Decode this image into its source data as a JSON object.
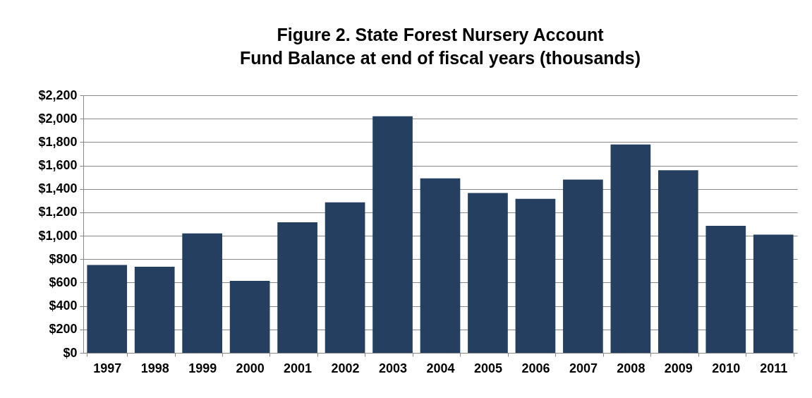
{
  "chart_data": {
    "type": "bar",
    "title": "Figure 2. State Forest Nursery Account\nFund Balance at end of fiscal years (thousands)",
    "categories": [
      "1997",
      "1998",
      "1999",
      "2000",
      "2001",
      "2002",
      "2003",
      "2004",
      "2005",
      "2006",
      "2007",
      "2008",
      "2009",
      "2010",
      "2011"
    ],
    "values": [
      750,
      735,
      1020,
      615,
      1115,
      1285,
      2020,
      1490,
      1365,
      1315,
      1480,
      1780,
      1560,
      1085,
      1010
    ],
    "color": "#243f60",
    "ylim": [
      0,
      2200
    ],
    "yticks": [
      {
        "value": 0,
        "label": "$0"
      },
      {
        "value": 200,
        "label": "$200"
      },
      {
        "value": 400,
        "label": "$400"
      },
      {
        "value": 600,
        "label": "$600"
      },
      {
        "value": 800,
        "label": "$800"
      },
      {
        "value": 1000,
        "label": "$1,000"
      },
      {
        "value": 1200,
        "label": "$1,200"
      },
      {
        "value": 1400,
        "label": "$1,400"
      },
      {
        "value": 1600,
        "label": "$1,600"
      },
      {
        "value": 1800,
        "label": "$1,800"
      },
      {
        "value": 2000,
        "label": "$2,000"
      },
      {
        "value": 2200,
        "label": "$2,200"
      }
    ],
    "grid": "y"
  }
}
